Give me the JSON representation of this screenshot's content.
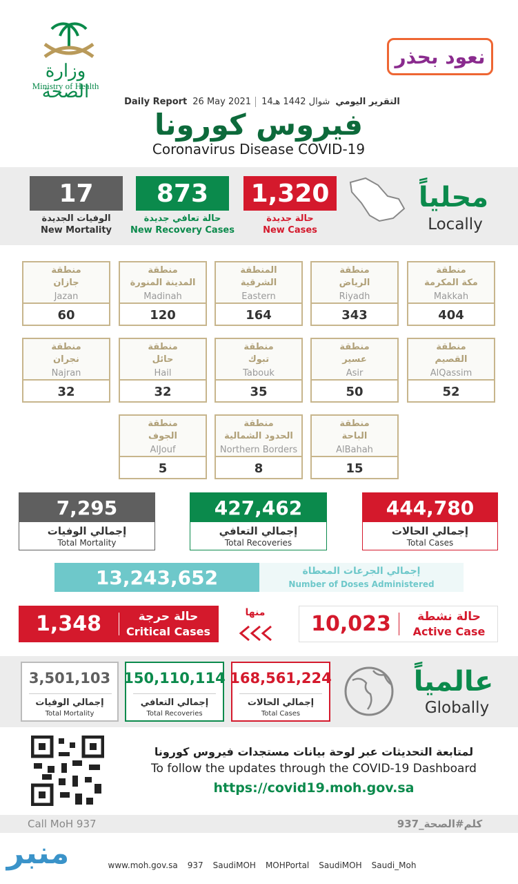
{
  "header": {
    "ministry_ar": "وزارة الصحة",
    "ministry_en": "Ministry of Health",
    "campaign": "نعود بحذر",
    "report_ar": "التقرير اليومي",
    "hijri": "14شوال 1442 هـ",
    "date": "26 May 2021",
    "report_en": "Daily Report",
    "title_ar": "فيروس كورونا",
    "title_en": "Coronavirus Disease COVID-19"
  },
  "local": {
    "label_ar": "محلياً",
    "label_en": "Locally",
    "stats": [
      {
        "value": "1,320",
        "ar": "حالة جديدة",
        "en": "New Cases"
      },
      {
        "value": "873",
        "ar": "حالة تعافي جديدة",
        "en": "New Recovery Cases"
      },
      {
        "value": "17",
        "ar": "الوفيات الجديدة",
        "en": "New Mortality"
      }
    ]
  },
  "regions": [
    {
      "prefix": "منطقة",
      "ar": "مكة المكرمة",
      "en": "Makkah",
      "value": "404"
    },
    {
      "prefix": "منطقة",
      "ar": "الرياض",
      "en": "Riyadh",
      "value": "343"
    },
    {
      "prefix": "المنطقة",
      "ar": "الشرقية",
      "en": "Eastern",
      "value": "164"
    },
    {
      "prefix": "منطقة",
      "ar": "المدينة المنورة",
      "en": "Madinah",
      "value": "120"
    },
    {
      "prefix": "منطقة",
      "ar": "جازان",
      "en": "Jazan",
      "value": "60"
    },
    {
      "prefix": "منطقة",
      "ar": "القصيم",
      "en": "AlQassim",
      "value": "52"
    },
    {
      "prefix": "منطقة",
      "ar": "عسير",
      "en": "Asir",
      "value": "50"
    },
    {
      "prefix": "منطقة",
      "ar": "تبوك",
      "en": "Tabouk",
      "value": "35"
    },
    {
      "prefix": "منطقة",
      "ar": "حائل",
      "en": "Hail",
      "value": "32"
    },
    {
      "prefix": "منطقة",
      "ar": "نجران",
      "en": "Najran",
      "value": "32"
    },
    {
      "prefix": "منطقة",
      "ar": "الباحة",
      "en": "AlBahah",
      "value": "15"
    },
    {
      "prefix": "منطقة",
      "ar": "الحدود الشمالية",
      "en": "Northern Borders",
      "value": "8"
    },
    {
      "prefix": "منطقة",
      "ar": "الجوف",
      "en": "AlJouf",
      "value": "5"
    }
  ],
  "totals": [
    {
      "value": "444,780",
      "ar": "إجمالي الحالات",
      "en": "Total Cases"
    },
    {
      "value": "427,462",
      "ar": "إجمالي التعافي",
      "en": "Total Recoveries"
    },
    {
      "value": "7,295",
      "ar": "إجمالي الوفيات",
      "en": "Total Mortality"
    }
  ],
  "doses": {
    "value": "13,243,652",
    "ar": "إجمالي الجرعات المعطاة",
    "en": "Number of Doses Administered"
  },
  "active": {
    "value": "10,023",
    "ar": "حالة نشطة",
    "en": "Active Case",
    "of_which": "منها"
  },
  "critical": {
    "value": "1,348",
    "ar": "حالة حرجة",
    "en": "Critical Cases"
  },
  "global": {
    "label_ar": "عالمياً",
    "label_en": "Globally",
    "stats": [
      {
        "value": "168,561,224",
        "ar": "إجمالي الحالات",
        "en": "Total Cases"
      },
      {
        "value": "150,110,114",
        "ar": "إجمالي التعافي",
        "en": "Total Recoveries"
      },
      {
        "value": "3,501,103",
        "ar": "إجمالي الوفيات",
        "en": "Total Mortality"
      }
    ]
  },
  "footer": {
    "follow_ar": "لمتابعة التحديثات عبر لوحة بيانات مستجدات فيروس كورونا",
    "follow_en": "To follow the updates through the COVID-19 Dashboard",
    "url": "https://covid19.moh.gov.sa",
    "call": "Call MoH 937",
    "hashtag": "كلم#الصحة_937",
    "social": [
      "www.moh.gov.sa",
      "937",
      "SaudiMOH",
      "MOHPortal",
      "SaudiMOH",
      "Saudi_Moh"
    ],
    "watermark": "منبر"
  }
}
